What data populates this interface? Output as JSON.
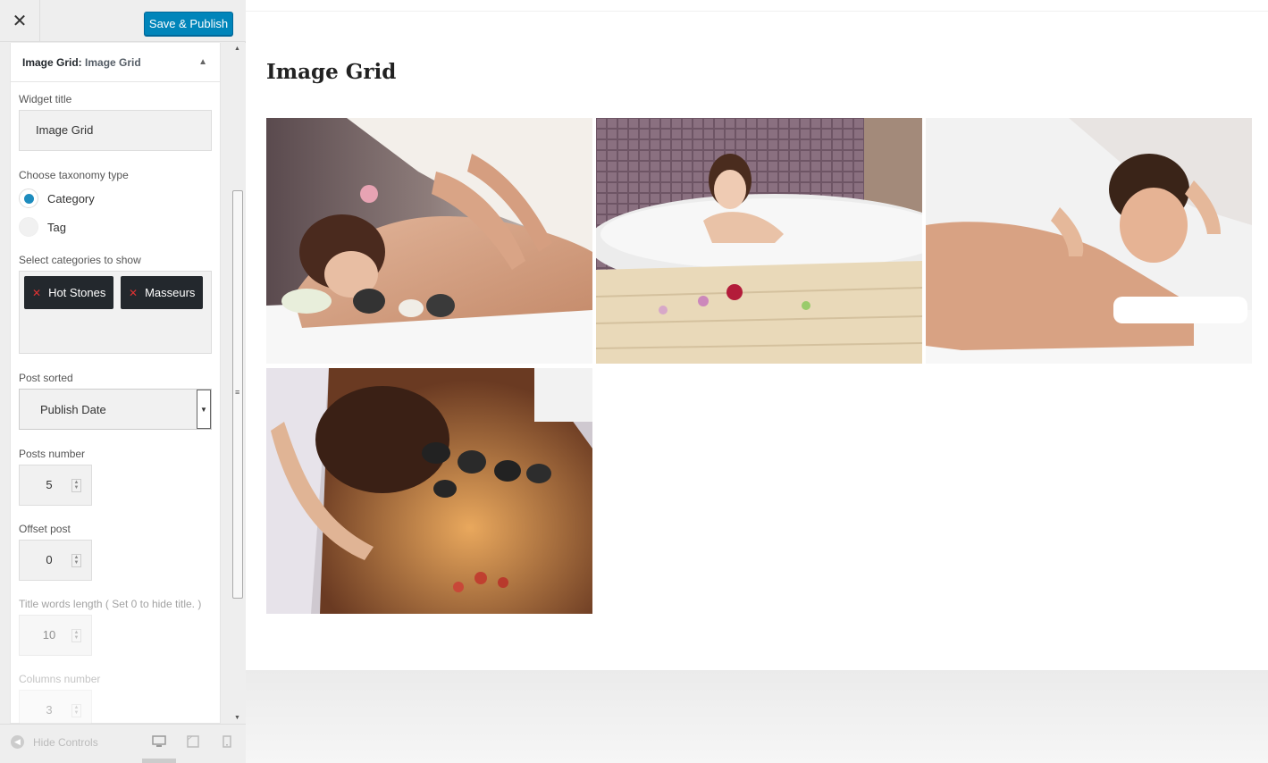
{
  "topbar": {
    "close_glyph": "✕",
    "save_label": "Save & Publish"
  },
  "widget": {
    "head_title": "Image Grid:",
    "head_subtitle": "Image Grid",
    "widget_title_label": "Widget title",
    "widget_title_value": "Image Grid",
    "taxonomy_label": "Choose taxonomy type",
    "taxonomy_options": [
      "Category",
      "Tag"
    ],
    "taxonomy_selected": "Category",
    "categories_label": "Select categories to show",
    "categories": [
      "Hot Stones",
      "Masseurs"
    ],
    "sort_label": "Post sorted",
    "sort_value": "Publish Date",
    "posts_number_label": "Posts number",
    "posts_number": "5",
    "offset_label": "Offset post",
    "offset_value": "0",
    "title_length_label": "Title words length ( Set 0 to hide title. )",
    "title_length_value": "10",
    "columns_label": "Columns number",
    "columns_value": "3"
  },
  "footer": {
    "hide_controls": "Hide Controls"
  },
  "preview": {
    "title": "Image Grid",
    "images": [
      "spa-massage-woman",
      "woman-in-jacuzzi",
      "man-shoulder-massage",
      "hot-stone-massage"
    ]
  },
  "colors": {
    "primary": "#0085ba",
    "tag_bg": "#23282d",
    "tag_remove": "#dc3232",
    "radio_checked": "#1e8cbe"
  }
}
